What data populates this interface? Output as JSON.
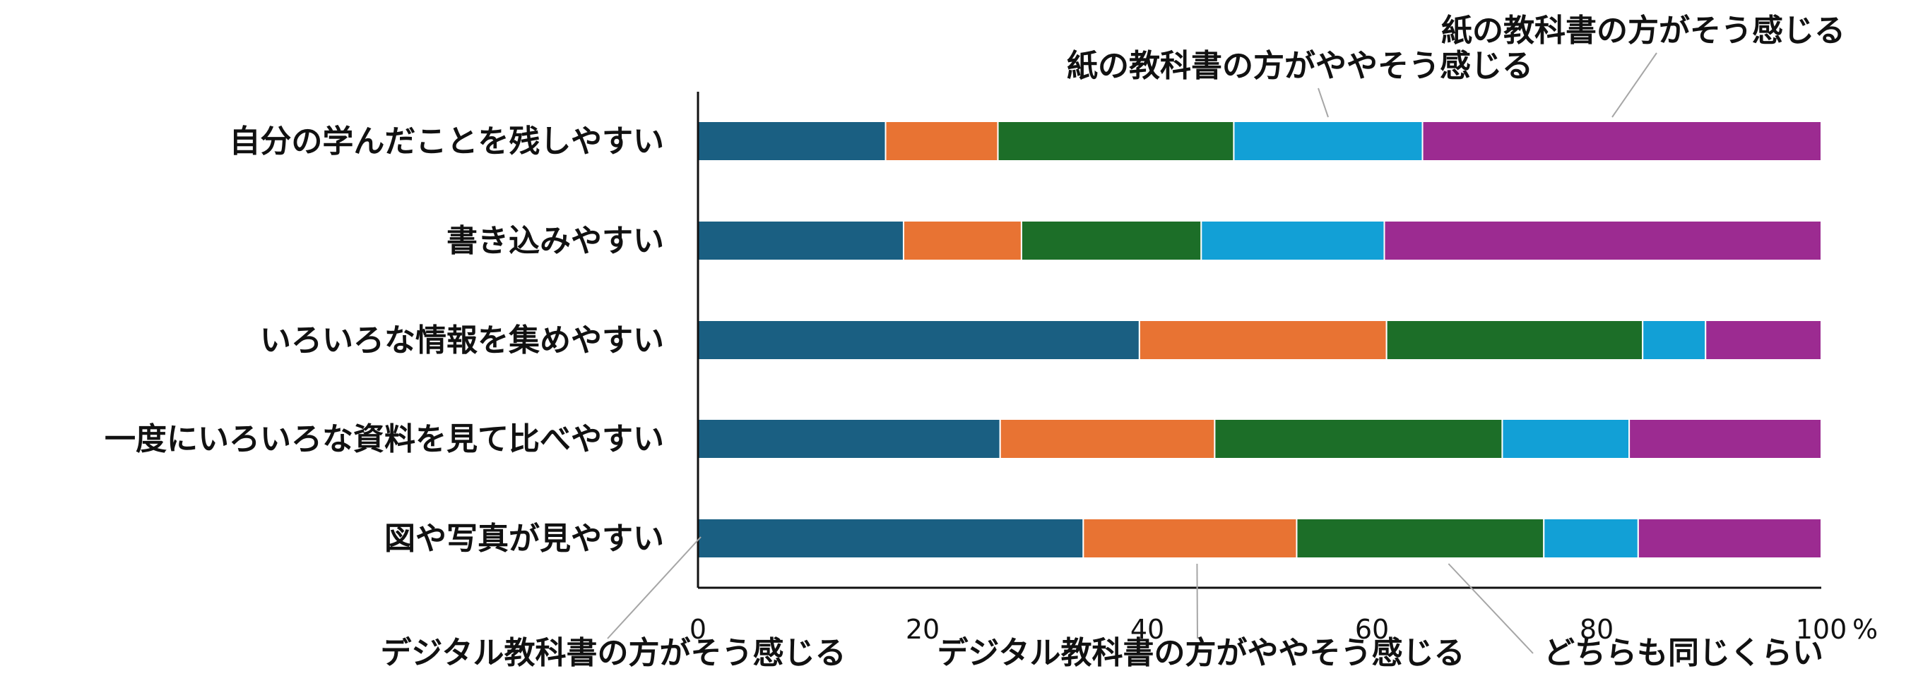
{
  "chart_data": {
    "type": "bar",
    "orientation": "horizontal",
    "stacked": true,
    "title": "",
    "xlabel": "",
    "ylabel": "",
    "x_unit": "%",
    "xlim": [
      0,
      100
    ],
    "x_ticks": [
      "0",
      "20",
      "40",
      "60",
      "80",
      "100"
    ],
    "grid": false,
    "legend_placement": "callout-labels",
    "categories": [
      "自分の学んだことを残しやすい",
      "書き込みやすい",
      "いろいろな情報を集めやすい",
      "一度にいろいろな資料を見て比べやすい",
      "図や写真が見やすい"
    ],
    "series": [
      {
        "name": "デジタル教科書の方がそう感じる",
        "color": "#1a5f82",
        "values": [
          16.7,
          18.3,
          39.3,
          26.9,
          34.3
        ]
      },
      {
        "name": "デジタル教科書の方がややそう感じる",
        "color": "#e87333",
        "values": [
          10.0,
          10.5,
          22.0,
          19.1,
          19.0
        ]
      },
      {
        "name": "どちらも同じくらい",
        "color": "#1c6e28",
        "values": [
          21.0,
          16.0,
          22.8,
          25.6,
          22.0
        ]
      },
      {
        "name": "紙の教科書の方がややそう感じる",
        "color": "#12a0d6",
        "values": [
          16.8,
          16.3,
          5.6,
          11.3,
          8.4
        ]
      },
      {
        "name": "紙の教科書の方がそう感じる",
        "color": "#9c2b91",
        "values": [
          35.5,
          38.9,
          10.3,
          17.1,
          16.3
        ]
      }
    ]
  }
}
